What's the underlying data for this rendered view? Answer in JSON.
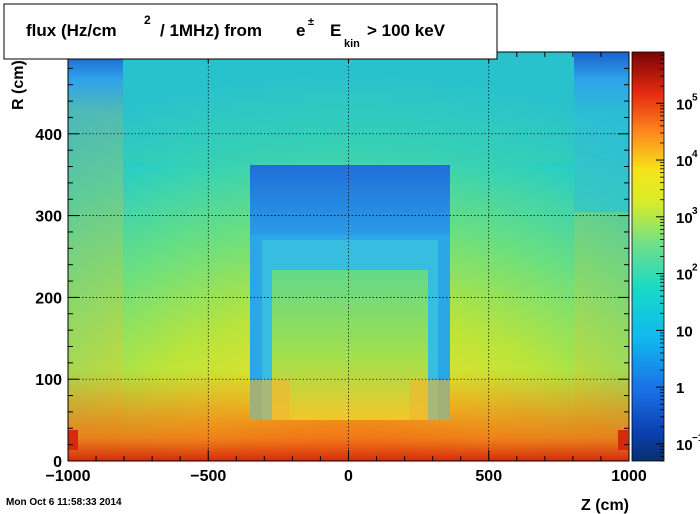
{
  "chart_data": {
    "type": "heatmap",
    "title": {
      "part1": "flux (Hz/cm",
      "sup2": "2",
      "part2": "/ 1MHz) from",
      "particle": "e",
      "pm": "±",
      "E": "E",
      "kin": "kin",
      "part3": "> 100 keV"
    },
    "xlabel": "Z (cm)",
    "ylabel": "R (cm)",
    "xlim": [
      -1000,
      1000
    ],
    "ylim": [
      0,
      500
    ],
    "x_ticks": [
      {
        "value": -1000,
        "label": "−1000"
      },
      {
        "value": -500,
        "label": "−500"
      },
      {
        "value": 0,
        "label": "0"
      },
      {
        "value": 500,
        "label": "500"
      },
      {
        "value": 1000,
        "label": "1000"
      }
    ],
    "y_ticks": [
      {
        "value": 0,
        "label": "0"
      },
      {
        "value": 100,
        "label": "100"
      },
      {
        "value": 200,
        "label": "200"
      },
      {
        "value": 300,
        "label": "300"
      },
      {
        "value": 400,
        "label": "400"
      }
    ],
    "grid": true,
    "colorbar": {
      "scale": "log",
      "range": [
        0.05,
        800000
      ],
      "ticks": [
        {
          "value": 0.1,
          "base": "10",
          "exp": "−1"
        },
        {
          "value": 1,
          "base": "1",
          "exp": ""
        },
        {
          "value": 10,
          "base": "10",
          "exp": ""
        },
        {
          "value": 100,
          "base": "10",
          "exp": "2"
        },
        {
          "value": 1000,
          "base": "10",
          "exp": "3"
        },
        {
          "value": 10000,
          "base": "10",
          "exp": "4"
        },
        {
          "value": 100000,
          "base": "10",
          "exp": "5"
        }
      ]
    },
    "timestamp": "Mon Oct  6 11:58:33 2014"
  }
}
